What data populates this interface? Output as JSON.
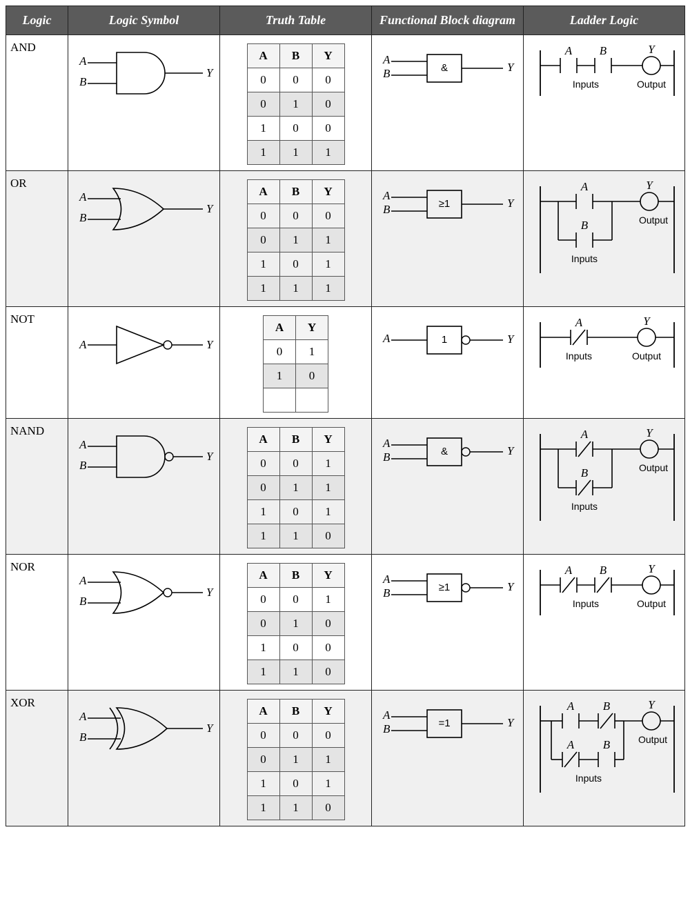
{
  "headers": [
    "Logic",
    "Logic Symbol",
    "Truth Table",
    "Functional Block diagram",
    "Ladder Logic"
  ],
  "inputs_label": "Inputs",
  "output_label": "Output",
  "sig": {
    "A": "A",
    "B": "B",
    "Y": "Y"
  },
  "colors": {
    "header_bg": "#5b5b5b",
    "header_fg": "#ffffff",
    "border": "#222222",
    "alt_row": "#f0f0f0",
    "tt_shade": "#e4e4e4"
  },
  "gates": [
    {
      "name": "AND",
      "symbol": "and",
      "bubble": false,
      "func_label": "&",
      "func_bubble": false,
      "ladder": "series_no",
      "truth": {
        "cols": [
          "A",
          "B",
          "Y"
        ],
        "rows": [
          [
            0,
            0,
            0
          ],
          [
            0,
            1,
            0
          ],
          [
            1,
            0,
            0
          ],
          [
            1,
            1,
            1
          ]
        ]
      }
    },
    {
      "name": "OR",
      "symbol": "or",
      "bubble": false,
      "func_label": "≥1",
      "func_bubble": false,
      "ladder": "parallel_no",
      "truth": {
        "cols": [
          "A",
          "B",
          "Y"
        ],
        "rows": [
          [
            0,
            0,
            0
          ],
          [
            0,
            1,
            1
          ],
          [
            1,
            0,
            1
          ],
          [
            1,
            1,
            1
          ]
        ]
      }
    },
    {
      "name": "NOT",
      "symbol": "not",
      "bubble": true,
      "func_label": "1",
      "func_bubble": true,
      "ladder": "single_nc",
      "truth": {
        "cols": [
          "A",
          "Y"
        ],
        "rows": [
          [
            0,
            1
          ],
          [
            1,
            0
          ],
          [
            "",
            ""
          ]
        ]
      }
    },
    {
      "name": "NAND",
      "symbol": "and",
      "bubble": true,
      "func_label": "&",
      "func_bubble": true,
      "ladder": "parallel_nc",
      "truth": {
        "cols": [
          "A",
          "B",
          "Y"
        ],
        "rows": [
          [
            0,
            0,
            1
          ],
          [
            0,
            1,
            1
          ],
          [
            1,
            0,
            1
          ],
          [
            1,
            1,
            0
          ]
        ]
      }
    },
    {
      "name": "NOR",
      "symbol": "or",
      "bubble": true,
      "func_label": "≥1",
      "func_bubble": true,
      "ladder": "series_nc",
      "truth": {
        "cols": [
          "A",
          "B",
          "Y"
        ],
        "rows": [
          [
            0,
            0,
            1
          ],
          [
            0,
            1,
            0
          ],
          [
            1,
            0,
            0
          ],
          [
            1,
            1,
            0
          ]
        ]
      }
    },
    {
      "name": "XOR",
      "symbol": "xor",
      "bubble": false,
      "func_label": "=1",
      "func_bubble": false,
      "ladder": "xor",
      "truth": {
        "cols": [
          "A",
          "B",
          "Y"
        ],
        "rows": [
          [
            0,
            0,
            0
          ],
          [
            0,
            1,
            1
          ],
          [
            1,
            0,
            1
          ],
          [
            1,
            1,
            0
          ]
        ]
      }
    }
  ]
}
